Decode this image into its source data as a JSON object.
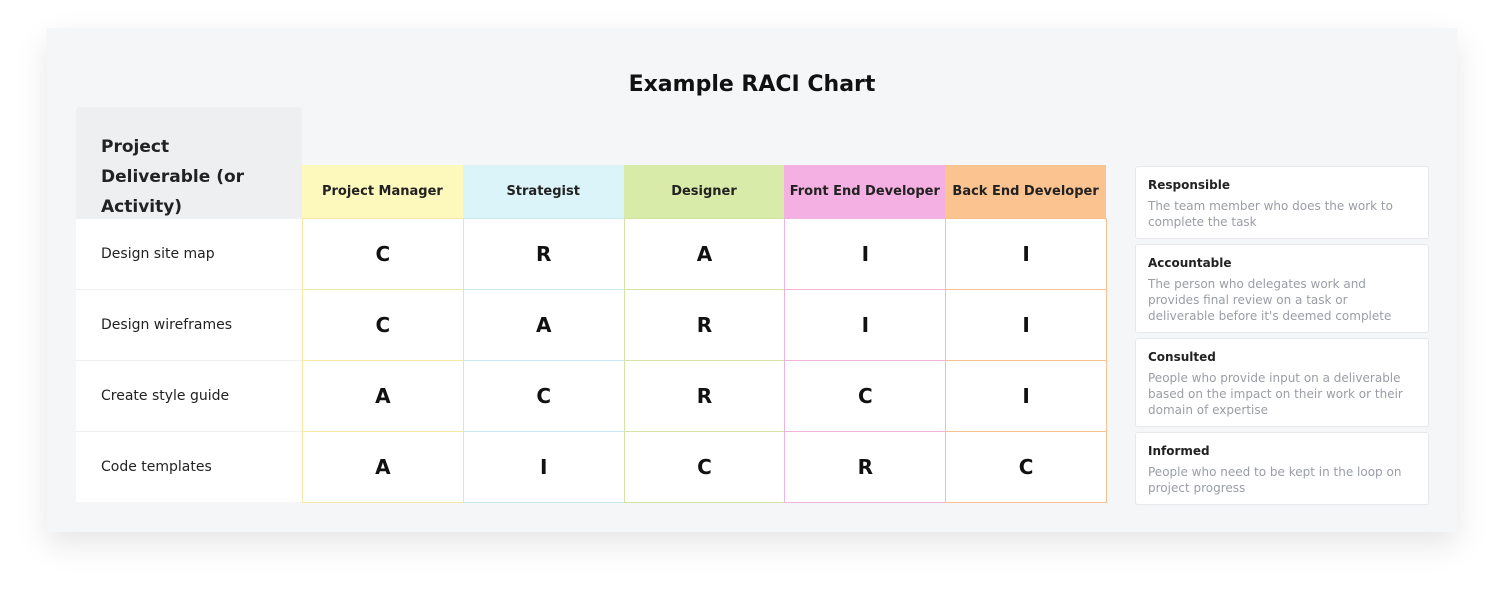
{
  "title": "Example RACI Chart",
  "table": {
    "header": "Project Deliverable (or Activity)",
    "columns": [
      {
        "name": "Project Manager",
        "color": "#fdf8bb",
        "border": "#f6e9a8"
      },
      {
        "name": "Strategist",
        "color": "#daf4f9",
        "border": "#c9e9f2"
      },
      {
        "name": "Designer",
        "color": "#d8eba9",
        "border": "#d4e2a4"
      },
      {
        "name": "Front End Developer",
        "color": "#f4b0e2",
        "border": "#eeb4df"
      },
      {
        "name": "Back End Developer",
        "color": "#fbc38f",
        "border": "#f6c191"
      }
    ],
    "rows": [
      {
        "label": "Design site map",
        "cells": [
          "C",
          "R",
          "A",
          "I",
          "I"
        ]
      },
      {
        "label": "Design wireframes",
        "cells": [
          "C",
          "A",
          "R",
          "I",
          "I"
        ]
      },
      {
        "label": "Create style guide",
        "cells": [
          "A",
          "C",
          "R",
          "C",
          "I"
        ]
      },
      {
        "label": "Code templates",
        "cells": [
          "A",
          "I",
          "C",
          "R",
          "C"
        ]
      }
    ]
  },
  "legend": [
    {
      "term": "Responsible",
      "description": "The team member who does the work to complete the task"
    },
    {
      "term": "Accountable",
      "description": "The person who delegates work and provides final review on a task or deliverable before it's deemed complete"
    },
    {
      "term": "Consulted",
      "description": "People who provide input on a deliverable based on the impact on their work or their domain of expertise"
    },
    {
      "term": "Informed",
      "description": "People who need to be kept in the loop on project progress"
    }
  ]
}
